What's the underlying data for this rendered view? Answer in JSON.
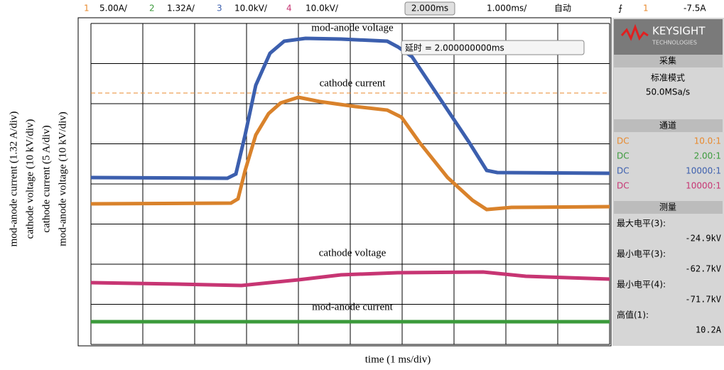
{
  "top_bar": {
    "ch1_num": "1",
    "ch1_scale": "5.00A/",
    "ch2_num": "2",
    "ch2_scale": "1.32A/",
    "ch3_num": "3",
    "ch3_scale": "10.0kV/",
    "ch4_num": "4",
    "ch4_scale": "10.0kV/",
    "delay": "2.000ms",
    "timebase": "1.000ms/",
    "trigger_mode": "自动",
    "trigger_source": "1",
    "trigger_level": "-7.5A"
  },
  "annotations": {
    "mod_anode_voltage": "mod-anode voltage",
    "cathode_current": "cathode current",
    "cathode_voltage": "cathode voltage",
    "mod_anode_current": "mod-anode current",
    "delay_box": "延时 = 2.000000000ms"
  },
  "axis_labels": {
    "y": [
      "mod-anode current (1.32 A/div)",
      "cathode voltage (10 kV/div)",
      "cathode current (5 A/div)",
      "mod-anode voltage (10 kV/div)"
    ],
    "x": "time (1 ms/div)"
  },
  "side_panel": {
    "brand": "KEYSIGHT",
    "brand_sub": "TECHNOLOGIES",
    "acquisition": {
      "title": "采集",
      "mode": "标准模式",
      "rate": "50.0MSa/s"
    },
    "channels": {
      "title": "通道",
      "rows": [
        [
          "DC",
          "10.0:1"
        ],
        [
          "DC",
          "2.00:1"
        ],
        [
          "DC",
          "10000:1"
        ],
        [
          "DC",
          "10000:1"
        ]
      ]
    },
    "measure": {
      "title": "测量",
      "items": [
        [
          "最大电平(3):",
          "-24.9kV"
        ],
        [
          "最小电平(3):",
          "-62.7kV"
        ],
        [
          "最小电平(4):",
          "-71.7kV"
        ],
        [
          "高值(1):",
          "10.2A"
        ]
      ]
    }
  }
}
